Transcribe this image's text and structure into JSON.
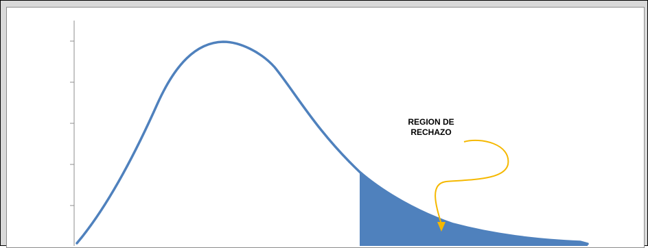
{
  "colors": {
    "curve": "#4f81bd",
    "region_fill": "#4f81bd",
    "arrow": "#f5b800",
    "axis": "#8c8c8c",
    "frame_outer": "#000000",
    "background": "#d9d9d9"
  },
  "annotation": {
    "line1": "REGION DE",
    "line2": "RECHAZO"
  },
  "icons": {
    "arrow": "curved-arrow-icon"
  }
}
